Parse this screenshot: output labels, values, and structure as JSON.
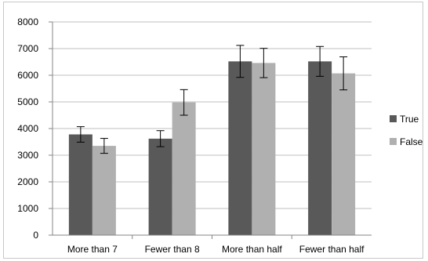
{
  "chart_data": {
    "type": "bar",
    "categories": [
      "More than 7",
      "Fewer than 8",
      "More than half",
      "Fewer than half"
    ],
    "series": [
      {
        "name": "True",
        "color": "#595959",
        "values": [
          3780,
          3620,
          6520,
          6520
        ],
        "error": [
          290,
          300,
          600,
          560
        ]
      },
      {
        "name": "False",
        "color": "#b0b0b0",
        "values": [
          3350,
          4980,
          6460,
          6070
        ],
        "error": [
          280,
          480,
          550,
          620
        ]
      }
    ],
    "title": "",
    "xlabel": "",
    "ylabel": "",
    "ylim": [
      0,
      8000
    ],
    "yticks": [
      0,
      1000,
      2000,
      3000,
      4000,
      5000,
      6000,
      7000,
      8000
    ],
    "grid": true,
    "legend_position": "right"
  }
}
